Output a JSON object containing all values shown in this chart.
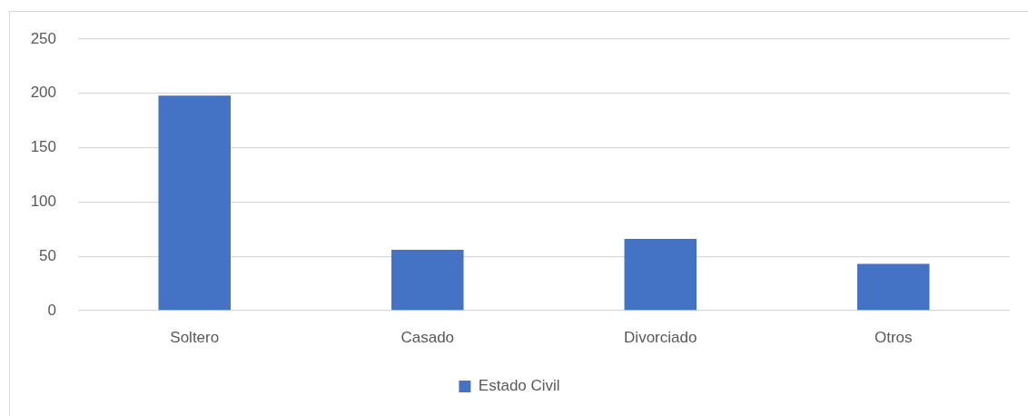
{
  "chart_data": {
    "type": "bar",
    "categories": [
      "Soltero",
      "Casado",
      "Divorciado",
      "Otros"
    ],
    "series": [
      {
        "name": "Estado Civil",
        "color": "#4472c4",
        "values": [
          198,
          56,
          66,
          43
        ]
      }
    ],
    "ylim": [
      0,
      250
    ],
    "yticks": [
      0,
      50,
      100,
      150,
      200,
      250
    ],
    "grid": "y",
    "legend": "bottom"
  }
}
